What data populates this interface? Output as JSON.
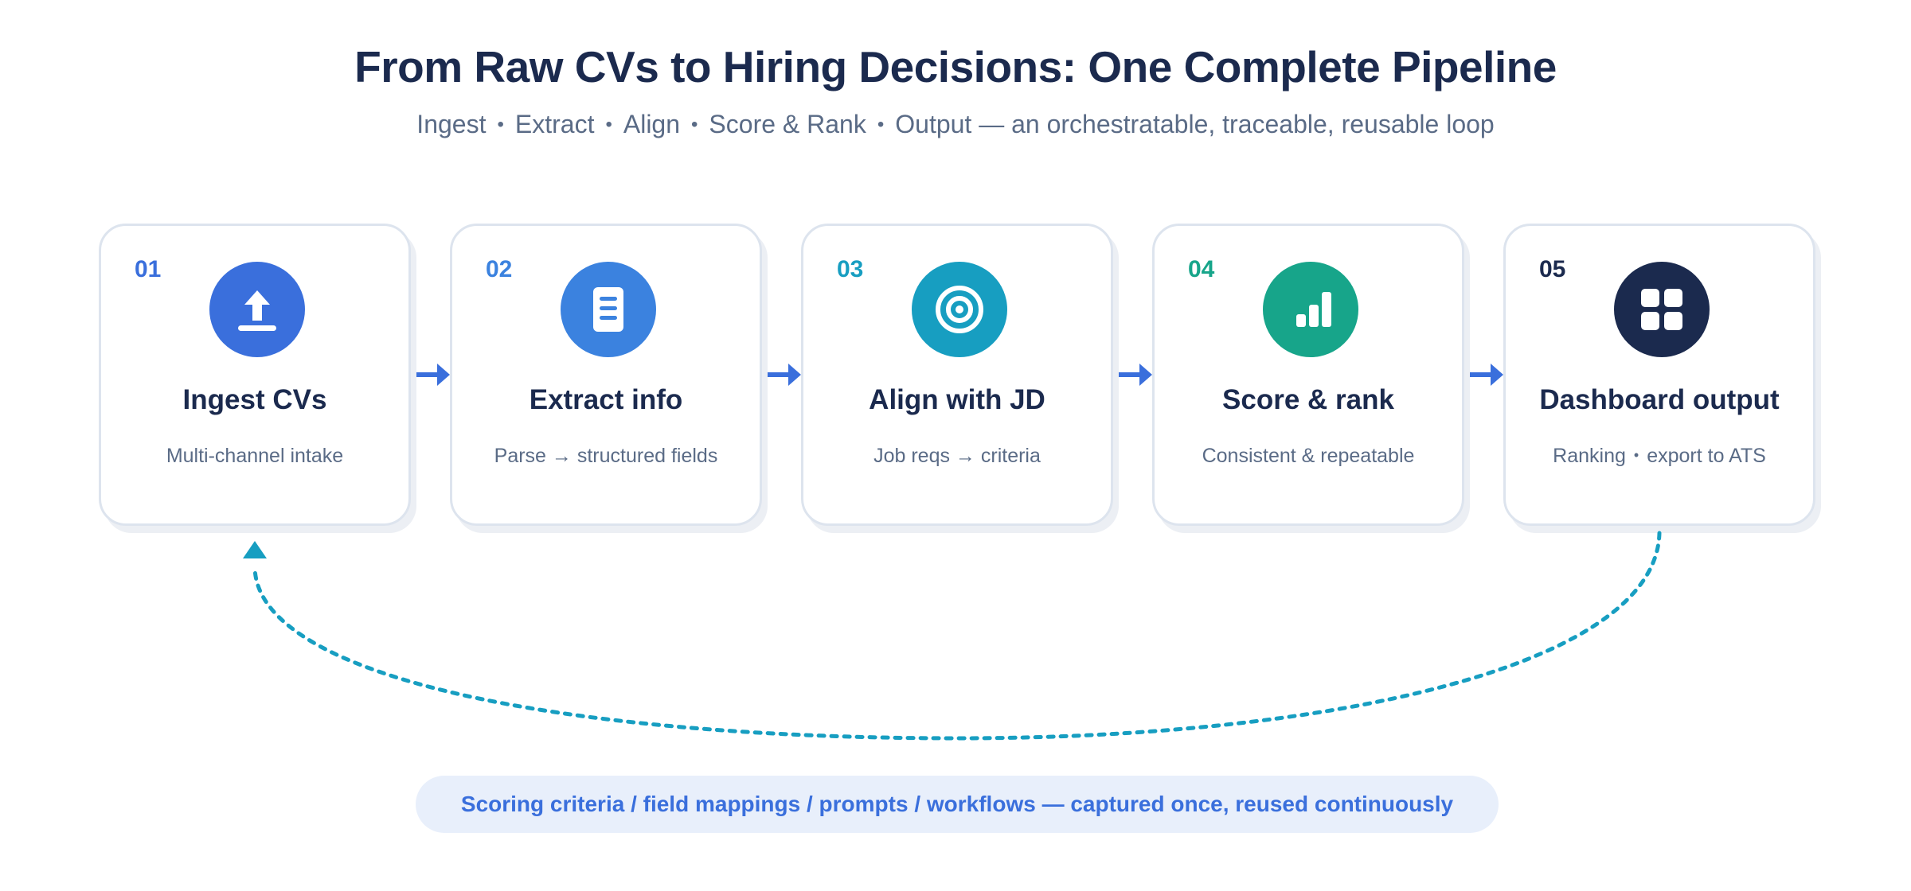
{
  "title": "From Raw CVs to Hiring Decisions: One Complete Pipeline",
  "subtitle": {
    "items": [
      "Ingest",
      "Extract",
      "Align",
      "Score & Rank",
      "Output"
    ],
    "separator": "•",
    "tail": "Output — an orchestratable, traceable, reusable loop"
  },
  "steps": [
    {
      "number": "01",
      "title": "Ingest CVs",
      "description": "Multi-channel intake",
      "icon": "upload-icon",
      "color": "#3a6fdc"
    },
    {
      "number": "02",
      "title": "Extract info",
      "description": "Parse → structured fields",
      "icon": "document-icon",
      "color": "#3b82df"
    },
    {
      "number": "03",
      "title": "Align with JD",
      "description": "Job reqs → criteria",
      "icon": "target-icon",
      "color": "#179ec1"
    },
    {
      "number": "04",
      "title": "Score & rank",
      "description": "Consistent & repeatable",
      "icon": "bar-chart-icon",
      "color": "#17a58a"
    },
    {
      "number": "05",
      "title": "Dashboard output",
      "description_parts": [
        "Ranking",
        "export to ATS"
      ],
      "icon": "dashboard-grid-icon",
      "color": "#1b2a4e"
    }
  ],
  "footer_note": "Scoring criteria / field mappings / prompts / workflows — captured once, reused continuously",
  "colors": {
    "title": "#1b2a4e",
    "subtitle": "#5a6b86",
    "connector": "#3a6fdc",
    "loop": "#179ec1",
    "pill_bg": "#e8effb",
    "pill_text": "#3a6fdc"
  }
}
